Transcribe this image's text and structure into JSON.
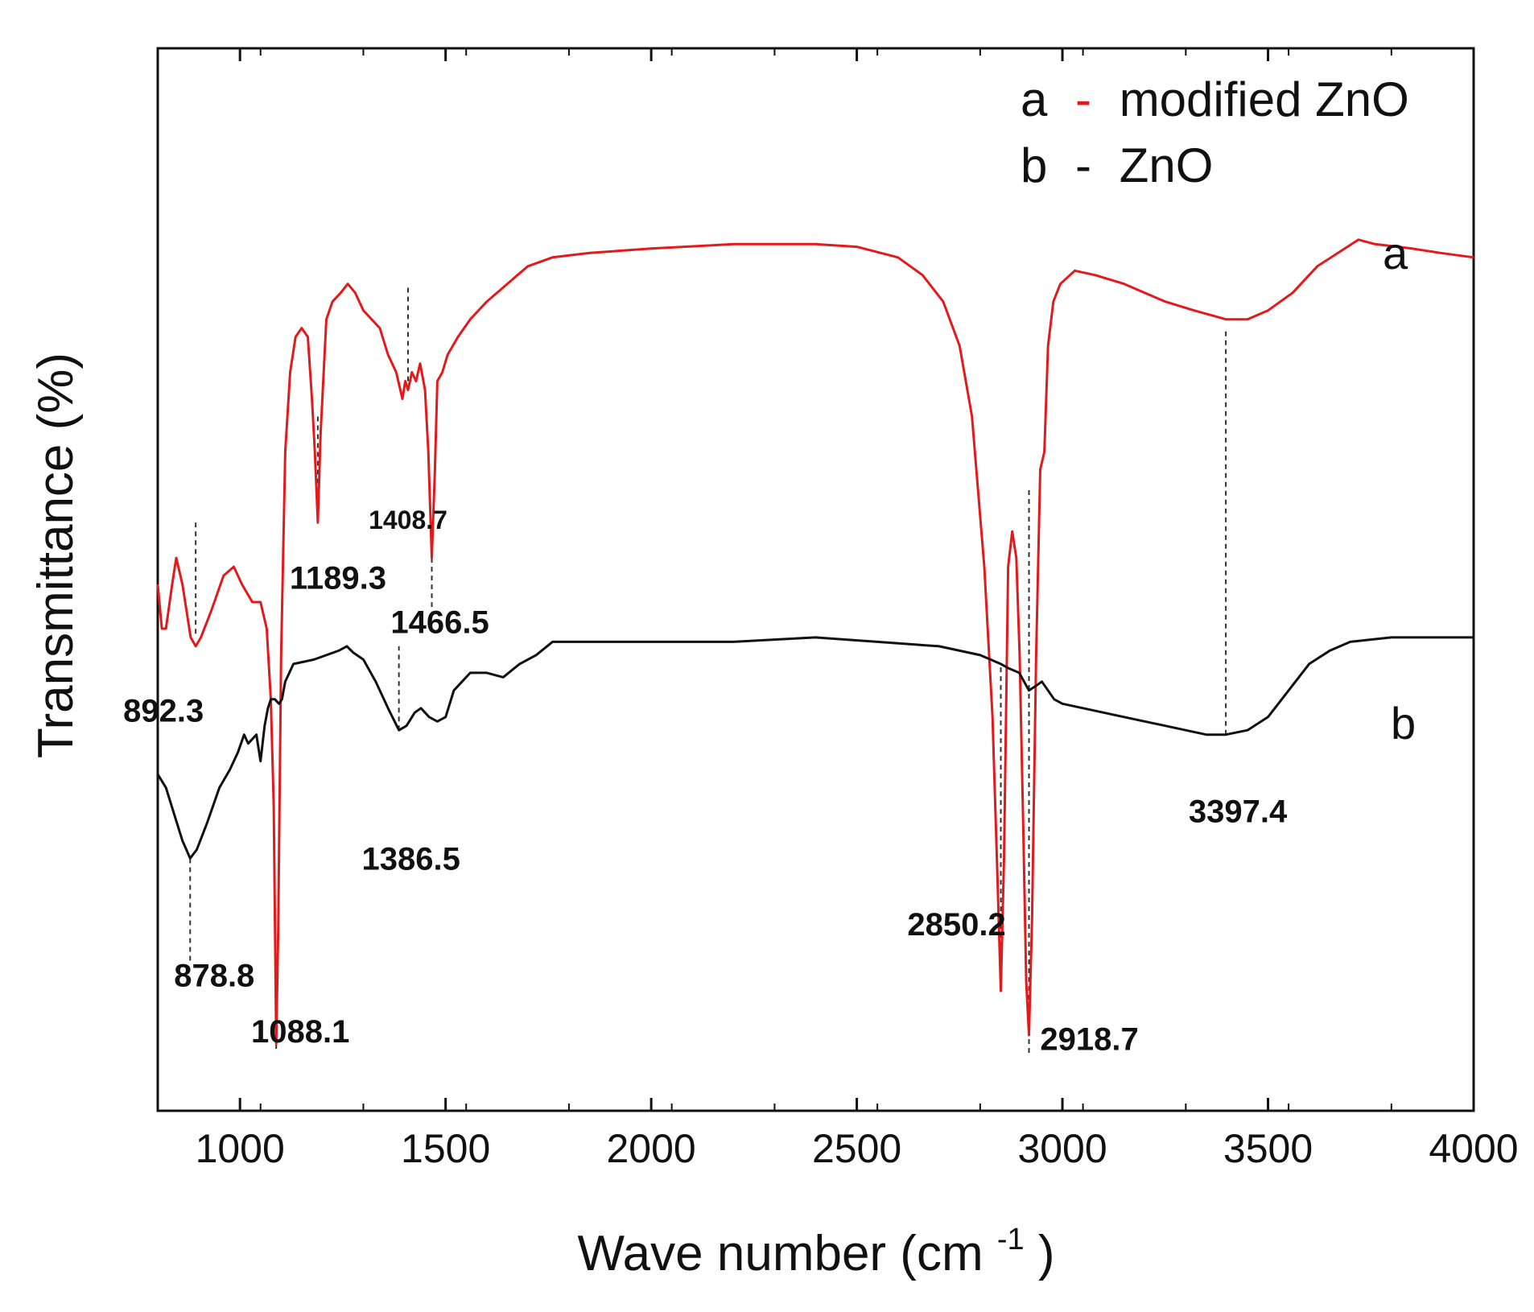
{
  "chart_data": {
    "type": "line",
    "title": "",
    "xlabel": "Wave number (cm",
    "xlabel_sup": "-1",
    "xlabel_close": ")",
    "ylabel": "Transmittance (%)",
    "xlim": [
      800,
      4000
    ],
    "ylim": [
      0,
      100
    ],
    "x_ticks": [
      1000,
      1500,
      2000,
      2500,
      3000,
      3500,
      4000
    ],
    "x_tick_labels": [
      "1000",
      "1500",
      "2000",
      "2500",
      "3000",
      "3500",
      "4000"
    ],
    "y_ticks_shown": false,
    "legend": {
      "placement": "top-right",
      "entries": [
        {
          "letter": "a",
          "dash": "-",
          "text": "modified ZnO"
        },
        {
          "letter": "b",
          "dash": "-",
          "text": "ZnO"
        }
      ]
    },
    "series": [
      {
        "name": "a - modified ZnO",
        "end_label": "a",
        "color": "#e31a1c",
        "points": [
          [
            800,
            53
          ],
          [
            810,
            48
          ],
          [
            820,
            48
          ],
          [
            835,
            53
          ],
          [
            845,
            56
          ],
          [
            860,
            53
          ],
          [
            880,
            47
          ],
          [
            892.3,
            46
          ],
          [
            905,
            47
          ],
          [
            930,
            50
          ],
          [
            960,
            54
          ],
          [
            985,
            55
          ],
          [
            1005,
            53
          ],
          [
            1030,
            51
          ],
          [
            1050,
            51
          ],
          [
            1065,
            48
          ],
          [
            1075,
            40
          ],
          [
            1082,
            28
          ],
          [
            1088.1,
            1
          ],
          [
            1093,
            14
          ],
          [
            1100,
            45
          ],
          [
            1110,
            68
          ],
          [
            1122,
            77
          ],
          [
            1135,
            81
          ],
          [
            1150,
            82
          ],
          [
            1165,
            81
          ],
          [
            1175,
            74
          ],
          [
            1182,
            68
          ],
          [
            1189.3,
            60
          ],
          [
            1196,
            70
          ],
          [
            1210,
            83
          ],
          [
            1225,
            85
          ],
          [
            1245,
            86
          ],
          [
            1262,
            87
          ],
          [
            1280,
            86
          ],
          [
            1300,
            84
          ],
          [
            1320,
            83
          ],
          [
            1340,
            82
          ],
          [
            1360,
            79
          ],
          [
            1380,
            77
          ],
          [
            1395,
            74
          ],
          [
            1402,
            76
          ],
          [
            1408.7,
            75
          ],
          [
            1418,
            77
          ],
          [
            1428,
            76
          ],
          [
            1438,
            78
          ],
          [
            1450,
            75
          ],
          [
            1458,
            68
          ],
          [
            1466.5,
            56
          ],
          [
            1474,
            66
          ],
          [
            1480,
            76
          ],
          [
            1492,
            77
          ],
          [
            1505,
            79
          ],
          [
            1530,
            81
          ],
          [
            1560,
            83
          ],
          [
            1600,
            85
          ],
          [
            1650,
            87
          ],
          [
            1700,
            89
          ],
          [
            1760,
            90
          ],
          [
            1850,
            90.5
          ],
          [
            2000,
            91
          ],
          [
            2200,
            91.5
          ],
          [
            2400,
            91.5
          ],
          [
            2500,
            91.2
          ],
          [
            2600,
            90
          ],
          [
            2660,
            88
          ],
          [
            2710,
            85
          ],
          [
            2750,
            80
          ],
          [
            2780,
            72
          ],
          [
            2810,
            55
          ],
          [
            2830,
            38
          ],
          [
            2842,
            20
          ],
          [
            2850.2,
            7
          ],
          [
            2858,
            22
          ],
          [
            2868,
            55
          ],
          [
            2878,
            59
          ],
          [
            2888,
            56
          ],
          [
            2896,
            45
          ],
          [
            2905,
            25
          ],
          [
            2912,
            8
          ],
          [
            2918.7,
            2
          ],
          [
            2926,
            15
          ],
          [
            2936,
            45
          ],
          [
            2946,
            66
          ],
          [
            2956,
            68
          ],
          [
            2965,
            80
          ],
          [
            2978,
            85
          ],
          [
            2995,
            87
          ],
          [
            3030,
            88.5
          ],
          [
            3080,
            88
          ],
          [
            3150,
            87
          ],
          [
            3250,
            85
          ],
          [
            3320,
            84
          ],
          [
            3397.4,
            83
          ],
          [
            3450,
            83
          ],
          [
            3500,
            84
          ],
          [
            3560,
            86
          ],
          [
            3620,
            89
          ],
          [
            3670,
            90.5
          ],
          [
            3720,
            92
          ],
          [
            3760,
            91.5
          ],
          [
            3850,
            91
          ],
          [
            3920,
            90.5
          ],
          [
            4000,
            90
          ]
        ]
      },
      {
        "name": "b - ZnO",
        "end_label": "b",
        "color": "#111111",
        "points": [
          [
            800,
            31.5
          ],
          [
            820,
            30
          ],
          [
            840,
            27
          ],
          [
            860,
            24
          ],
          [
            878.8,
            22
          ],
          [
            895,
            23
          ],
          [
            920,
            26
          ],
          [
            950,
            30
          ],
          [
            975,
            32
          ],
          [
            995,
            34
          ],
          [
            1010,
            36
          ],
          [
            1020,
            35
          ],
          [
            1030,
            35.5
          ],
          [
            1040,
            36
          ],
          [
            1050,
            33
          ],
          [
            1060,
            37
          ],
          [
            1068,
            39
          ],
          [
            1075,
            40
          ],
          [
            1085,
            40
          ],
          [
            1095,
            39.5
          ],
          [
            1102,
            40
          ],
          [
            1110,
            42
          ],
          [
            1130,
            44
          ],
          [
            1180,
            44.5
          ],
          [
            1240,
            45.5
          ],
          [
            1260,
            46
          ],
          [
            1275,
            45.3
          ],
          [
            1300,
            44.5
          ],
          [
            1330,
            42
          ],
          [
            1360,
            39
          ],
          [
            1386.5,
            36.5
          ],
          [
            1405,
            37
          ],
          [
            1425,
            38.5
          ],
          [
            1440,
            39
          ],
          [
            1460,
            38
          ],
          [
            1480,
            37.5
          ],
          [
            1500,
            38
          ],
          [
            1520,
            41
          ],
          [
            1560,
            43
          ],
          [
            1600,
            43
          ],
          [
            1640,
            42.5
          ],
          [
            1680,
            44
          ],
          [
            1720,
            45
          ],
          [
            1760,
            46.5
          ],
          [
            1850,
            46.5
          ],
          [
            2000,
            46.5
          ],
          [
            2200,
            46.5
          ],
          [
            2400,
            47
          ],
          [
            2550,
            46.5
          ],
          [
            2700,
            46
          ],
          [
            2800,
            45
          ],
          [
            2850.2,
            44
          ],
          [
            2870,
            43.5
          ],
          [
            2895,
            43
          ],
          [
            2918.7,
            41
          ],
          [
            2935,
            41.5
          ],
          [
            2950,
            42
          ],
          [
            2965,
            41
          ],
          [
            2980,
            40
          ],
          [
            3000,
            39.5
          ],
          [
            3050,
            39
          ],
          [
            3100,
            38.5
          ],
          [
            3150,
            38
          ],
          [
            3200,
            37.5
          ],
          [
            3250,
            37
          ],
          [
            3300,
            36.5
          ],
          [
            3350,
            36
          ],
          [
            3397.4,
            36
          ],
          [
            3450,
            36.5
          ],
          [
            3500,
            38
          ],
          [
            3550,
            41
          ],
          [
            3600,
            44
          ],
          [
            3650,
            45.5
          ],
          [
            3700,
            46.5
          ],
          [
            3800,
            47
          ],
          [
            3900,
            47
          ],
          [
            4000,
            47
          ]
        ]
      }
    ],
    "peak_markers": [
      {
        "label": "892.3",
        "x": 892.3,
        "line_from": 60,
        "line_to": 47,
        "label_y": 37.5,
        "label_offset": -40
      },
      {
        "label": "1189.3",
        "x": 1189.3,
        "line_from": 72,
        "line_to": 61,
        "label_y": 52.5,
        "label_offset": 25
      },
      {
        "label": "1408.7",
        "x": 1408.7,
        "line_from": 76,
        "line_to": 87,
        "label_y": 59.3,
        "label_offset": 0
      },
      {
        "label": "1466.5",
        "x": 1466.5,
        "line_from": 56,
        "line_to": 50,
        "label_y": 47.5,
        "label_offset": 10
      },
      {
        "label": "1386.5",
        "x": 1386.5,
        "line_from": 36.5,
        "line_to": 46,
        "label_y": 20.7,
        "label_offset": 15
      },
      {
        "label": "878.8",
        "x": 878.8,
        "line_from": 22,
        "line_to": 10,
        "label_y": 7.5,
        "label_offset": 30
      },
      {
        "label": "1088.1",
        "x": 1088.1,
        "line_from": 1,
        "line_to": 0,
        "label_y": 1.2,
        "label_offset": 30
      },
      {
        "label": "2850.2",
        "x": 2850.2,
        "line_from": 7,
        "line_to": 44,
        "label_y": 13.3,
        "label_offset": -55
      },
      {
        "label": "2918.7",
        "x": 2918.7,
        "line_from": 0,
        "line_to": 64,
        "label_y": 0.3,
        "label_offset": 75
      },
      {
        "label": "3397.4",
        "x": 3397.4,
        "line_from": 36,
        "line_to": 82,
        "label_y": 26.1,
        "label_offset": 15
      }
    ]
  }
}
